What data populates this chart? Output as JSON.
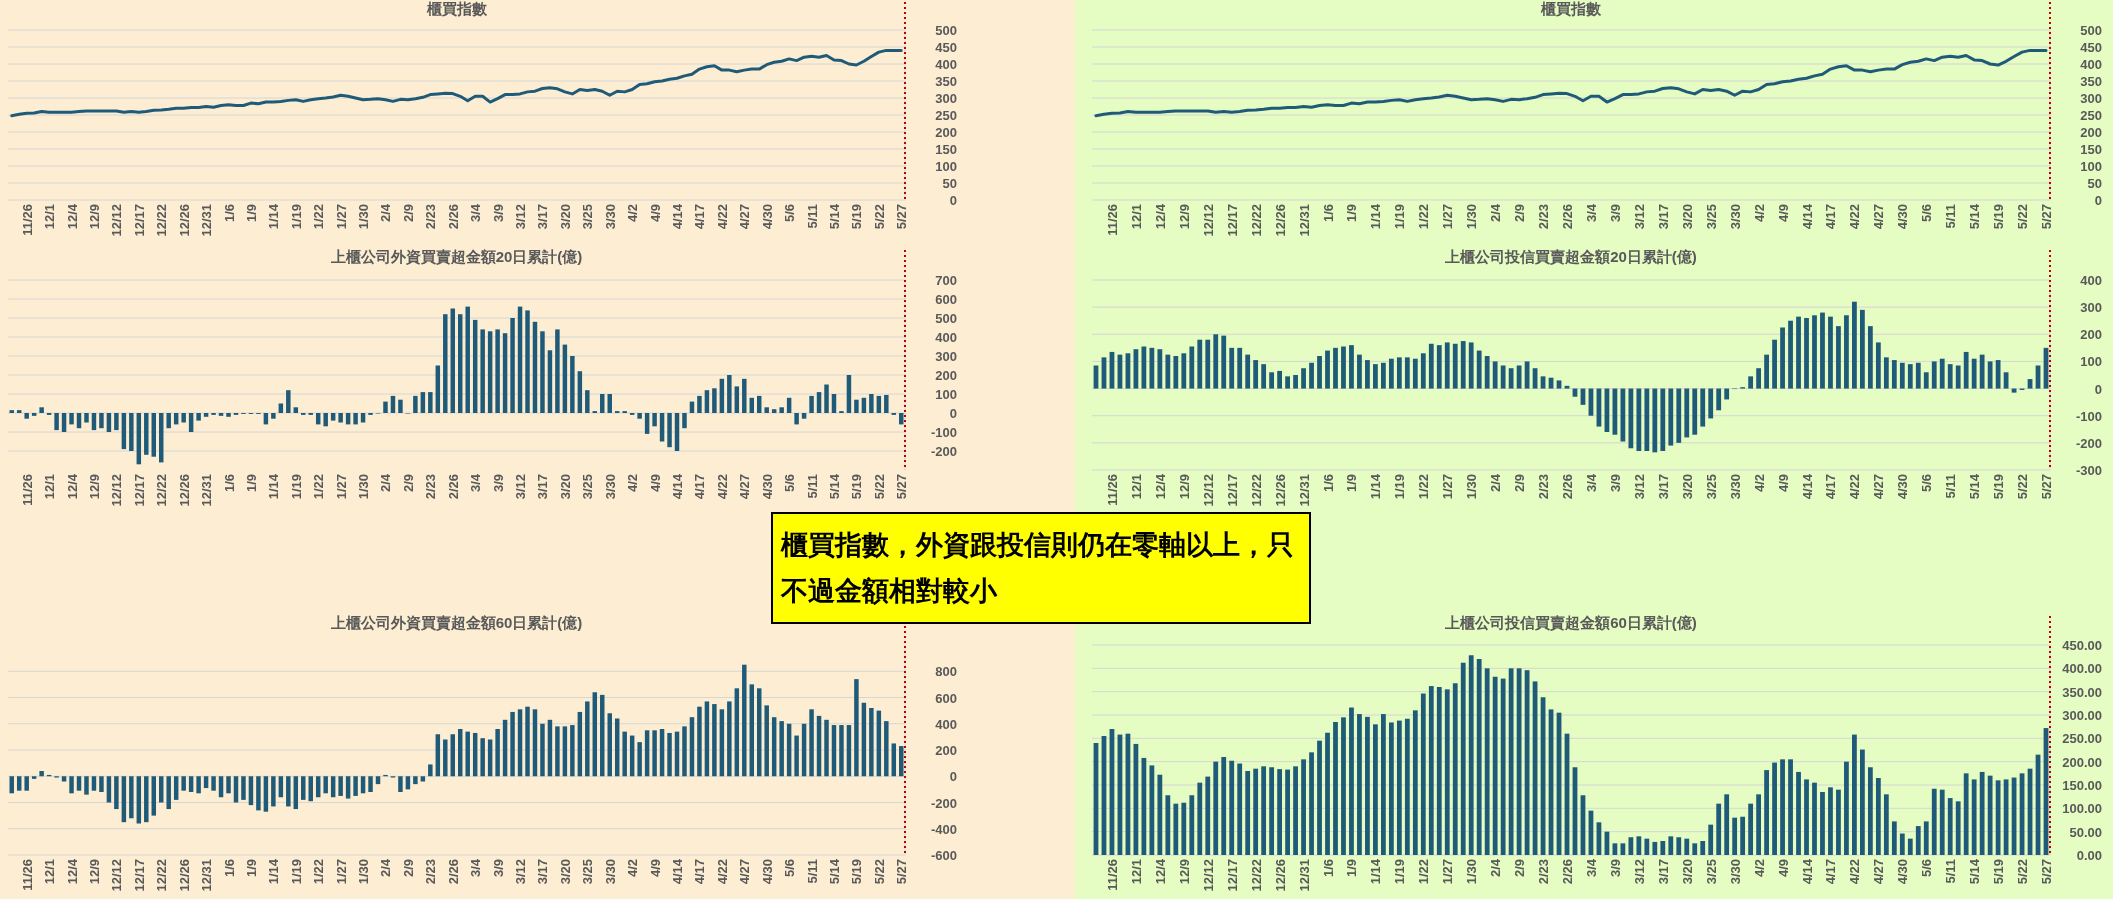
{
  "chart_data": [
    {
      "type": "line",
      "title": "櫃買指數",
      "color": "#1f5b78",
      "grid": "y",
      "ylim": [
        0,
        500
      ],
      "yticks": [
        0,
        50,
        100,
        150,
        200,
        250,
        300,
        350,
        400,
        450,
        500
      ],
      "categories": [
        null,
        null,
        "11/26",
        null,
        null,
        "12/1",
        null,
        null,
        "12/4",
        null,
        null,
        "12/9",
        null,
        null,
        "12/12",
        null,
        null,
        "12/17",
        null,
        null,
        "12/22",
        null,
        null,
        "12/26",
        null,
        null,
        "12/31",
        null,
        null,
        "1/6",
        null,
        null,
        "1/9",
        null,
        null,
        "1/14",
        null,
        null,
        "1/19",
        null,
        null,
        "1/22",
        null,
        null,
        "1/27",
        null,
        null,
        "1/30",
        null,
        null,
        "2/4",
        null,
        null,
        "2/9",
        null,
        null,
        "2/23",
        null,
        null,
        "2/26",
        null,
        null,
        "3/4",
        null,
        null,
        "3/9",
        null,
        null,
        "3/12",
        null,
        null,
        "3/17",
        null,
        null,
        "3/20",
        null,
        null,
        "3/25",
        null,
        null,
        "3/30",
        null,
        null,
        "4/2",
        null,
        null,
        "4/9",
        null,
        null,
        "4/14",
        null,
        null,
        "4/17",
        null,
        null,
        "4/22",
        null,
        null,
        "4/27",
        null,
        null,
        "4/30",
        null,
        null,
        "5/6",
        null,
        null,
        "5/11",
        null,
        null,
        "5/14",
        null,
        null,
        "5/19",
        null,
        null,
        "5/22",
        null,
        null,
        "5/27"
      ],
      "values": [
        248,
        252,
        255,
        256,
        260,
        258,
        258,
        258,
        258,
        260,
        262,
        262,
        262,
        262,
        262,
        258,
        260,
        258,
        260,
        264,
        265,
        267,
        270,
        270,
        272,
        272,
        275,
        273,
        278,
        280,
        278,
        278,
        285,
        283,
        288,
        288,
        290,
        293,
        295,
        290,
        295,
        298,
        300,
        303,
        308,
        305,
        300,
        295,
        296,
        298,
        295,
        290,
        296,
        295,
        298,
        302,
        310,
        312,
        314,
        313,
        305,
        292,
        305,
        305,
        288,
        298,
        310,
        310,
        312,
        318,
        320,
        328,
        330,
        327,
        318,
        312,
        325,
        322,
        325,
        320,
        308,
        320,
        318,
        325,
        340,
        342,
        348,
        350,
        355,
        358,
        365,
        370,
        385,
        392,
        395,
        382,
        382,
        377,
        382,
        385,
        385,
        398,
        405,
        408,
        415,
        410,
        420,
        423,
        420,
        425,
        412,
        410,
        400,
        397,
        408,
        422,
        435,
        440,
        440,
        440
      ],
      "ref_lines": [
        {
          "axis": "x",
          "value": "5/27",
          "color": "#c00000",
          "line_style": "dotted"
        }
      ]
    },
    {
      "type": "line",
      "title": "櫃買指數",
      "color": "#1f5b78",
      "grid": "y",
      "ylim": [
        0,
        500
      ],
      "yticks": [
        0,
        50,
        100,
        150,
        200,
        250,
        300,
        350,
        400,
        450,
        500
      ],
      "categories": [
        null,
        null,
        "11/26",
        null,
        null,
        "12/1",
        null,
        null,
        "12/4",
        null,
        null,
        "12/9",
        null,
        null,
        "12/12",
        null,
        null,
        "12/17",
        null,
        null,
        "12/22",
        null,
        null,
        "12/26",
        null,
        null,
        "12/31",
        null,
        null,
        "1/6",
        null,
        null,
        "1/9",
        null,
        null,
        "1/14",
        null,
        null,
        "1/19",
        null,
        null,
        "1/22",
        null,
        null,
        "1/27",
        null,
        null,
        "1/30",
        null,
        null,
        "2/4",
        null,
        null,
        "2/9",
        null,
        null,
        "2/23",
        null,
        null,
        "2/26",
        null,
        null,
        "3/4",
        null,
        null,
        "3/9",
        null,
        null,
        "3/12",
        null,
        null,
        "3/17",
        null,
        null,
        "3/20",
        null,
        null,
        "3/25",
        null,
        null,
        "3/30",
        null,
        null,
        "4/2",
        null,
        null,
        "4/9",
        null,
        null,
        "4/14",
        null,
        null,
        "4/17",
        null,
        null,
        "4/22",
        null,
        null,
        "4/27",
        null,
        null,
        "4/30",
        null,
        null,
        "5/6",
        null,
        null,
        "5/11",
        null,
        null,
        "5/14",
        null,
        null,
        "5/19",
        null,
        null,
        "5/22",
        null,
        null,
        "5/27"
      ],
      "values": [
        248,
        252,
        255,
        256,
        260,
        258,
        258,
        258,
        258,
        260,
        262,
        262,
        262,
        262,
        262,
        258,
        260,
        258,
        260,
        264,
        265,
        267,
        270,
        270,
        272,
        272,
        275,
        273,
        278,
        280,
        278,
        278,
        285,
        283,
        288,
        288,
        290,
        293,
        295,
        290,
        295,
        298,
        300,
        303,
        308,
        305,
        300,
        295,
        296,
        298,
        295,
        290,
        296,
        295,
        298,
        302,
        310,
        312,
        314,
        313,
        305,
        292,
        305,
        305,
        288,
        298,
        310,
        310,
        312,
        318,
        320,
        328,
        330,
        327,
        318,
        312,
        325,
        322,
        325,
        320,
        308,
        320,
        318,
        325,
        340,
        342,
        348,
        350,
        355,
        358,
        365,
        370,
        385,
        392,
        395,
        382,
        382,
        377,
        382,
        385,
        385,
        398,
        405,
        408,
        415,
        410,
        420,
        423,
        420,
        425,
        412,
        410,
        400,
        397,
        408,
        422,
        435,
        440,
        440,
        440
      ],
      "ref_lines": [
        {
          "axis": "x",
          "value": "5/27",
          "color": "#c00000",
          "line_style": "dotted"
        }
      ]
    },
    {
      "type": "bar",
      "title": "上櫃公司外資買賣超金額20日累計(億)",
      "color": "#1f5b78",
      "grid": "y",
      "ylim": [
        -300,
        700
      ],
      "yticks": [
        -200,
        -100,
        0,
        100,
        200,
        300,
        400,
        500,
        600,
        700
      ],
      "categories": [
        null,
        null,
        "11/26",
        null,
        null,
        "12/1",
        null,
        null,
        "12/4",
        null,
        null,
        "12/9",
        null,
        null,
        "12/12",
        null,
        null,
        "12/17",
        null,
        null,
        "12/22",
        null,
        null,
        "12/26",
        null,
        null,
        "12/31",
        null,
        null,
        "1/6",
        null,
        null,
        "1/9",
        null,
        null,
        "1/14",
        null,
        null,
        "1/19",
        null,
        null,
        "1/22",
        null,
        null,
        "1/27",
        null,
        null,
        "1/30",
        null,
        null,
        "2/4",
        null,
        null,
        "2/9",
        null,
        null,
        "2/23",
        null,
        null,
        "2/26",
        null,
        null,
        "3/4",
        null,
        null,
        "3/9",
        null,
        null,
        "3/12",
        null,
        null,
        "3/17",
        null,
        null,
        "3/20",
        null,
        null,
        "3/25",
        null,
        null,
        "3/30",
        null,
        null,
        "4/2",
        null,
        null,
        "4/9",
        null,
        null,
        "4/14",
        null,
        null,
        "4/17",
        null,
        null,
        "4/22",
        null,
        null,
        "4/27",
        null,
        null,
        "4/30",
        null,
        null,
        "5/6",
        null,
        null,
        "5/11",
        null,
        null,
        "5/14",
        null,
        null,
        "5/19",
        null,
        null,
        "5/22",
        null,
        null,
        "5/27"
      ],
      "values": [
        15,
        15,
        -30,
        -15,
        30,
        -10,
        -90,
        -100,
        -60,
        -80,
        -50,
        -90,
        -80,
        -100,
        -90,
        -190,
        -200,
        -270,
        -220,
        -230,
        -260,
        -80,
        -60,
        -50,
        -100,
        -40,
        -20,
        -10,
        -15,
        -20,
        -10,
        -5,
        -5,
        -5,
        -60,
        -30,
        50,
        120,
        30,
        -10,
        -10,
        -60,
        -70,
        -40,
        -50,
        -60,
        -60,
        -50,
        -10,
        0,
        60,
        90,
        70,
        0,
        90,
        110,
        110,
        250,
        520,
        550,
        520,
        560,
        490,
        440,
        430,
        440,
        420,
        500,
        560,
        540,
        480,
        430,
        330,
        440,
        360,
        300,
        220,
        120,
        10,
        100,
        100,
        10,
        10,
        -10,
        -30,
        -110,
        -70,
        -150,
        -180,
        -200,
        -80,
        60,
        90,
        120,
        130,
        180,
        200,
        140,
        180,
        80,
        90,
        30,
        20,
        30,
        80,
        -60,
        -30,
        90,
        110,
        150,
        100,
        10,
        200,
        70,
        80,
        100,
        90,
        95,
        -10,
        -60
      ],
      "ref_lines": [
        {
          "axis": "x",
          "value": "5/27",
          "color": "#c00000",
          "line_style": "dotted"
        }
      ]
    },
    {
      "type": "bar",
      "title": "上櫃公司投信買賣超金額20日累計(億)",
      "color": "#1f5b78",
      "grid": "y",
      "ylim": [
        -300,
        400
      ],
      "yticks": [
        -300,
        -200,
        -100,
        0,
        100,
        200,
        300,
        400
      ],
      "categories": [
        null,
        null,
        "11/26",
        null,
        null,
        "12/1",
        null,
        null,
        "12/4",
        null,
        null,
        "12/9",
        null,
        null,
        "12/12",
        null,
        null,
        "12/17",
        null,
        null,
        "12/22",
        null,
        null,
        "12/26",
        null,
        null,
        "12/31",
        null,
        null,
        "1/6",
        null,
        null,
        "1/9",
        null,
        null,
        "1/14",
        null,
        null,
        "1/19",
        null,
        null,
        "1/22",
        null,
        null,
        "1/27",
        null,
        null,
        "1/30",
        null,
        null,
        "2/4",
        null,
        null,
        "2/9",
        null,
        null,
        "2/23",
        null,
        null,
        "2/26",
        null,
        null,
        "3/4",
        null,
        null,
        "3/9",
        null,
        null,
        "3/12",
        null,
        null,
        "3/17",
        null,
        null,
        "3/20",
        null,
        null,
        "3/25",
        null,
        null,
        "3/30",
        null,
        null,
        "4/2",
        null,
        null,
        "4/9",
        null,
        null,
        "4/14",
        null,
        null,
        "4/17",
        null,
        null,
        "4/22",
        null,
        null,
        "4/27",
        null,
        null,
        "4/30",
        null,
        null,
        "5/6",
        null,
        null,
        "5/11",
        null,
        null,
        "5/14",
        null,
        null,
        "5/19",
        null,
        null,
        "5/22",
        null,
        null,
        "5/27"
      ],
      "values": [
        85,
        115,
        135,
        125,
        130,
        145,
        155,
        150,
        145,
        125,
        120,
        130,
        155,
        180,
        180,
        200,
        195,
        150,
        150,
        125,
        105,
        90,
        60,
        65,
        45,
        50,
        75,
        95,
        120,
        140,
        150,
        155,
        160,
        125,
        105,
        90,
        95,
        110,
        115,
        115,
        110,
        130,
        165,
        160,
        170,
        165,
        175,
        170,
        140,
        120,
        100,
        85,
        75,
        85,
        100,
        75,
        45,
        40,
        30,
        10,
        -30,
        -60,
        -100,
        -140,
        -160,
        -170,
        -195,
        -220,
        -230,
        -230,
        -235,
        -230,
        -210,
        -200,
        -180,
        -170,
        -140,
        -110,
        -80,
        -40,
        0,
        5,
        45,
        75,
        125,
        180,
        225,
        250,
        265,
        260,
        270,
        280,
        265,
        230,
        270,
        320,
        290,
        230,
        170,
        115,
        105,
        95,
        90,
        95,
        60,
        100,
        110,
        90,
        85,
        135,
        110,
        125,
        100,
        105,
        60,
        -15,
        -5,
        35,
        85,
        150
      ],
      "ref_lines": [
        {
          "axis": "x",
          "value": "5/27",
          "color": "#c00000",
          "line_style": "dotted"
        }
      ]
    },
    {
      "type": "bar",
      "title": "上櫃公司外資買賣超金額60日累計(億)",
      "color": "#1f5b78",
      "grid": "y",
      "ylim": [
        -600,
        1000
      ],
      "yticks": [
        -600,
        -400,
        -200,
        0,
        200,
        400,
        600,
        800
      ],
      "categories": [
        null,
        null,
        "11/26",
        null,
        null,
        "12/1",
        null,
        null,
        "12/4",
        null,
        null,
        "12/9",
        null,
        null,
        "12/12",
        null,
        null,
        "12/17",
        null,
        null,
        "12/22",
        null,
        null,
        "12/26",
        null,
        null,
        "12/31",
        null,
        null,
        "1/6",
        null,
        null,
        "1/9",
        null,
        null,
        "1/14",
        null,
        null,
        "1/19",
        null,
        null,
        "1/22",
        null,
        null,
        "1/27",
        null,
        null,
        "1/30",
        null,
        null,
        "2/4",
        null,
        null,
        "2/9",
        null,
        null,
        "2/23",
        null,
        null,
        "2/26",
        null,
        null,
        "3/4",
        null,
        null,
        "3/9",
        null,
        null,
        "3/12",
        null,
        null,
        "3/17",
        null,
        null,
        "3/20",
        null,
        null,
        "3/25",
        null,
        null,
        "3/30",
        null,
        null,
        "4/2",
        null,
        null,
        "4/9",
        null,
        null,
        "4/14",
        null,
        null,
        "4/17",
        null,
        null,
        "4/22",
        null,
        null,
        "4/27",
        null,
        null,
        "4/30",
        null,
        null,
        "5/6",
        null,
        null,
        "5/11",
        null,
        null,
        "5/14",
        null,
        null,
        "5/19",
        null,
        null,
        "5/22",
        null,
        null,
        "5/27"
      ],
      "values": [
        -130,
        -110,
        -110,
        -20,
        40,
        10,
        -10,
        -40,
        -130,
        -110,
        -140,
        -110,
        -120,
        -200,
        -250,
        -350,
        -320,
        -360,
        -350,
        -300,
        -200,
        -250,
        -180,
        -110,
        -120,
        -130,
        -90,
        -110,
        -160,
        -130,
        -200,
        -180,
        -220,
        -260,
        -270,
        -230,
        -160,
        -230,
        -250,
        -180,
        -190,
        -160,
        -130,
        -160,
        -150,
        -170,
        -150,
        -130,
        -120,
        -60,
        10,
        -10,
        -120,
        -100,
        -60,
        -40,
        90,
        320,
        280,
        320,
        360,
        340,
        330,
        290,
        280,
        360,
        430,
        490,
        510,
        530,
        510,
        400,
        430,
        380,
        380,
        390,
        490,
        570,
        640,
        620,
        480,
        440,
        340,
        310,
        260,
        350,
        350,
        360,
        330,
        340,
        380,
        450,
        530,
        570,
        550,
        510,
        570,
        670,
        850,
        700,
        670,
        540,
        450,
        420,
        400,
        310,
        400,
        510,
        460,
        430,
        390,
        390,
        390,
        740,
        560,
        520,
        500,
        420,
        250,
        230
      ],
      "ref_lines": [
        {
          "axis": "x",
          "value": "5/27",
          "color": "#c00000",
          "line_style": "dotted"
        }
      ]
    },
    {
      "type": "bar",
      "title": "上櫃公司投信買賣超金額60日累計(億)",
      "color": "#1f5b78",
      "grid": "y",
      "ylim": [
        0,
        450
      ],
      "yticks": [
        {
          "value": 0,
          "label": "0.00"
        },
        {
          "value": 50,
          "label": "50.00"
        },
        {
          "value": 100,
          "label": "100.00"
        },
        {
          "value": 150,
          "label": "150.00"
        },
        {
          "value": 200,
          "label": "200.00"
        },
        {
          "value": 250,
          "label": "250.00"
        },
        {
          "value": 300,
          "label": "300.00"
        },
        {
          "value": 350,
          "label": "350.00"
        },
        {
          "value": 400,
          "label": "400.00"
        },
        {
          "value": 450,
          "label": "450.00"
        }
      ],
      "categories": [
        null,
        null,
        "11/26",
        null,
        null,
        "12/1",
        null,
        null,
        "12/4",
        null,
        null,
        "12/9",
        null,
        null,
        "12/12",
        null,
        null,
        "12/17",
        null,
        null,
        "12/22",
        null,
        null,
        "12/26",
        null,
        null,
        "12/31",
        null,
        null,
        "1/6",
        null,
        null,
        "1/9",
        null,
        null,
        "1/14",
        null,
        null,
        "1/19",
        null,
        null,
        "1/22",
        null,
        null,
        "1/27",
        null,
        null,
        "1/30",
        null,
        null,
        "2/4",
        null,
        null,
        "2/9",
        null,
        null,
        "2/23",
        null,
        null,
        "2/26",
        null,
        null,
        "3/4",
        null,
        null,
        "3/9",
        null,
        null,
        "3/12",
        null,
        null,
        "3/17",
        null,
        null,
        "3/20",
        null,
        null,
        "3/25",
        null,
        null,
        "3/30",
        null,
        null,
        "4/2",
        null,
        null,
        "4/9",
        null,
        null,
        "4/14",
        null,
        null,
        "4/17",
        null,
        null,
        "4/22",
        null,
        null,
        "4/27",
        null,
        null,
        "4/30",
        null,
        null,
        "5/6",
        null,
        null,
        "5/11",
        null,
        null,
        "5/14",
        null,
        null,
        "5/19",
        null,
        null,
        "5/22",
        null,
        null,
        "5/27"
      ],
      "values": [
        240,
        255,
        270,
        258,
        260,
        238,
        208,
        192,
        172,
        128,
        110,
        112,
        128,
        155,
        168,
        200,
        210,
        202,
        196,
        180,
        185,
        190,
        188,
        184,
        183,
        190,
        205,
        220,
        245,
        262,
        285,
        295,
        316,
        302,
        296,
        280,
        302,
        284,
        288,
        292,
        310,
        346,
        362,
        360,
        355,
        368,
        412,
        428,
        420,
        400,
        382,
        378,
        400,
        400,
        396,
        372,
        338,
        312,
        305,
        260,
        188,
        128,
        95,
        70,
        50,
        25,
        25,
        38,
        40,
        35,
        28,
        30,
        40,
        38,
        35,
        25,
        30,
        65,
        110,
        130,
        80,
        82,
        110,
        130,
        182,
        198,
        205,
        205,
        178,
        162,
        155,
        135,
        145,
        140,
        200,
        258,
        226,
        188,
        165,
        130,
        72,
        46,
        35,
        62,
        72,
        142,
        140,
        122,
        115,
        175,
        162,
        178,
        170,
        160,
        162,
        166,
        175,
        185,
        215,
        272
      ],
      "ref_lines": [
        {
          "axis": "x",
          "value": "5/27",
          "color": "#c00000",
          "line_style": "dotted"
        }
      ]
    },
    {
      "type": "other",
      "annotations": [
        "櫃買指數，外資跟投信則仍在零軸以上，只不過金額相對較小"
      ]
    }
  ]
}
